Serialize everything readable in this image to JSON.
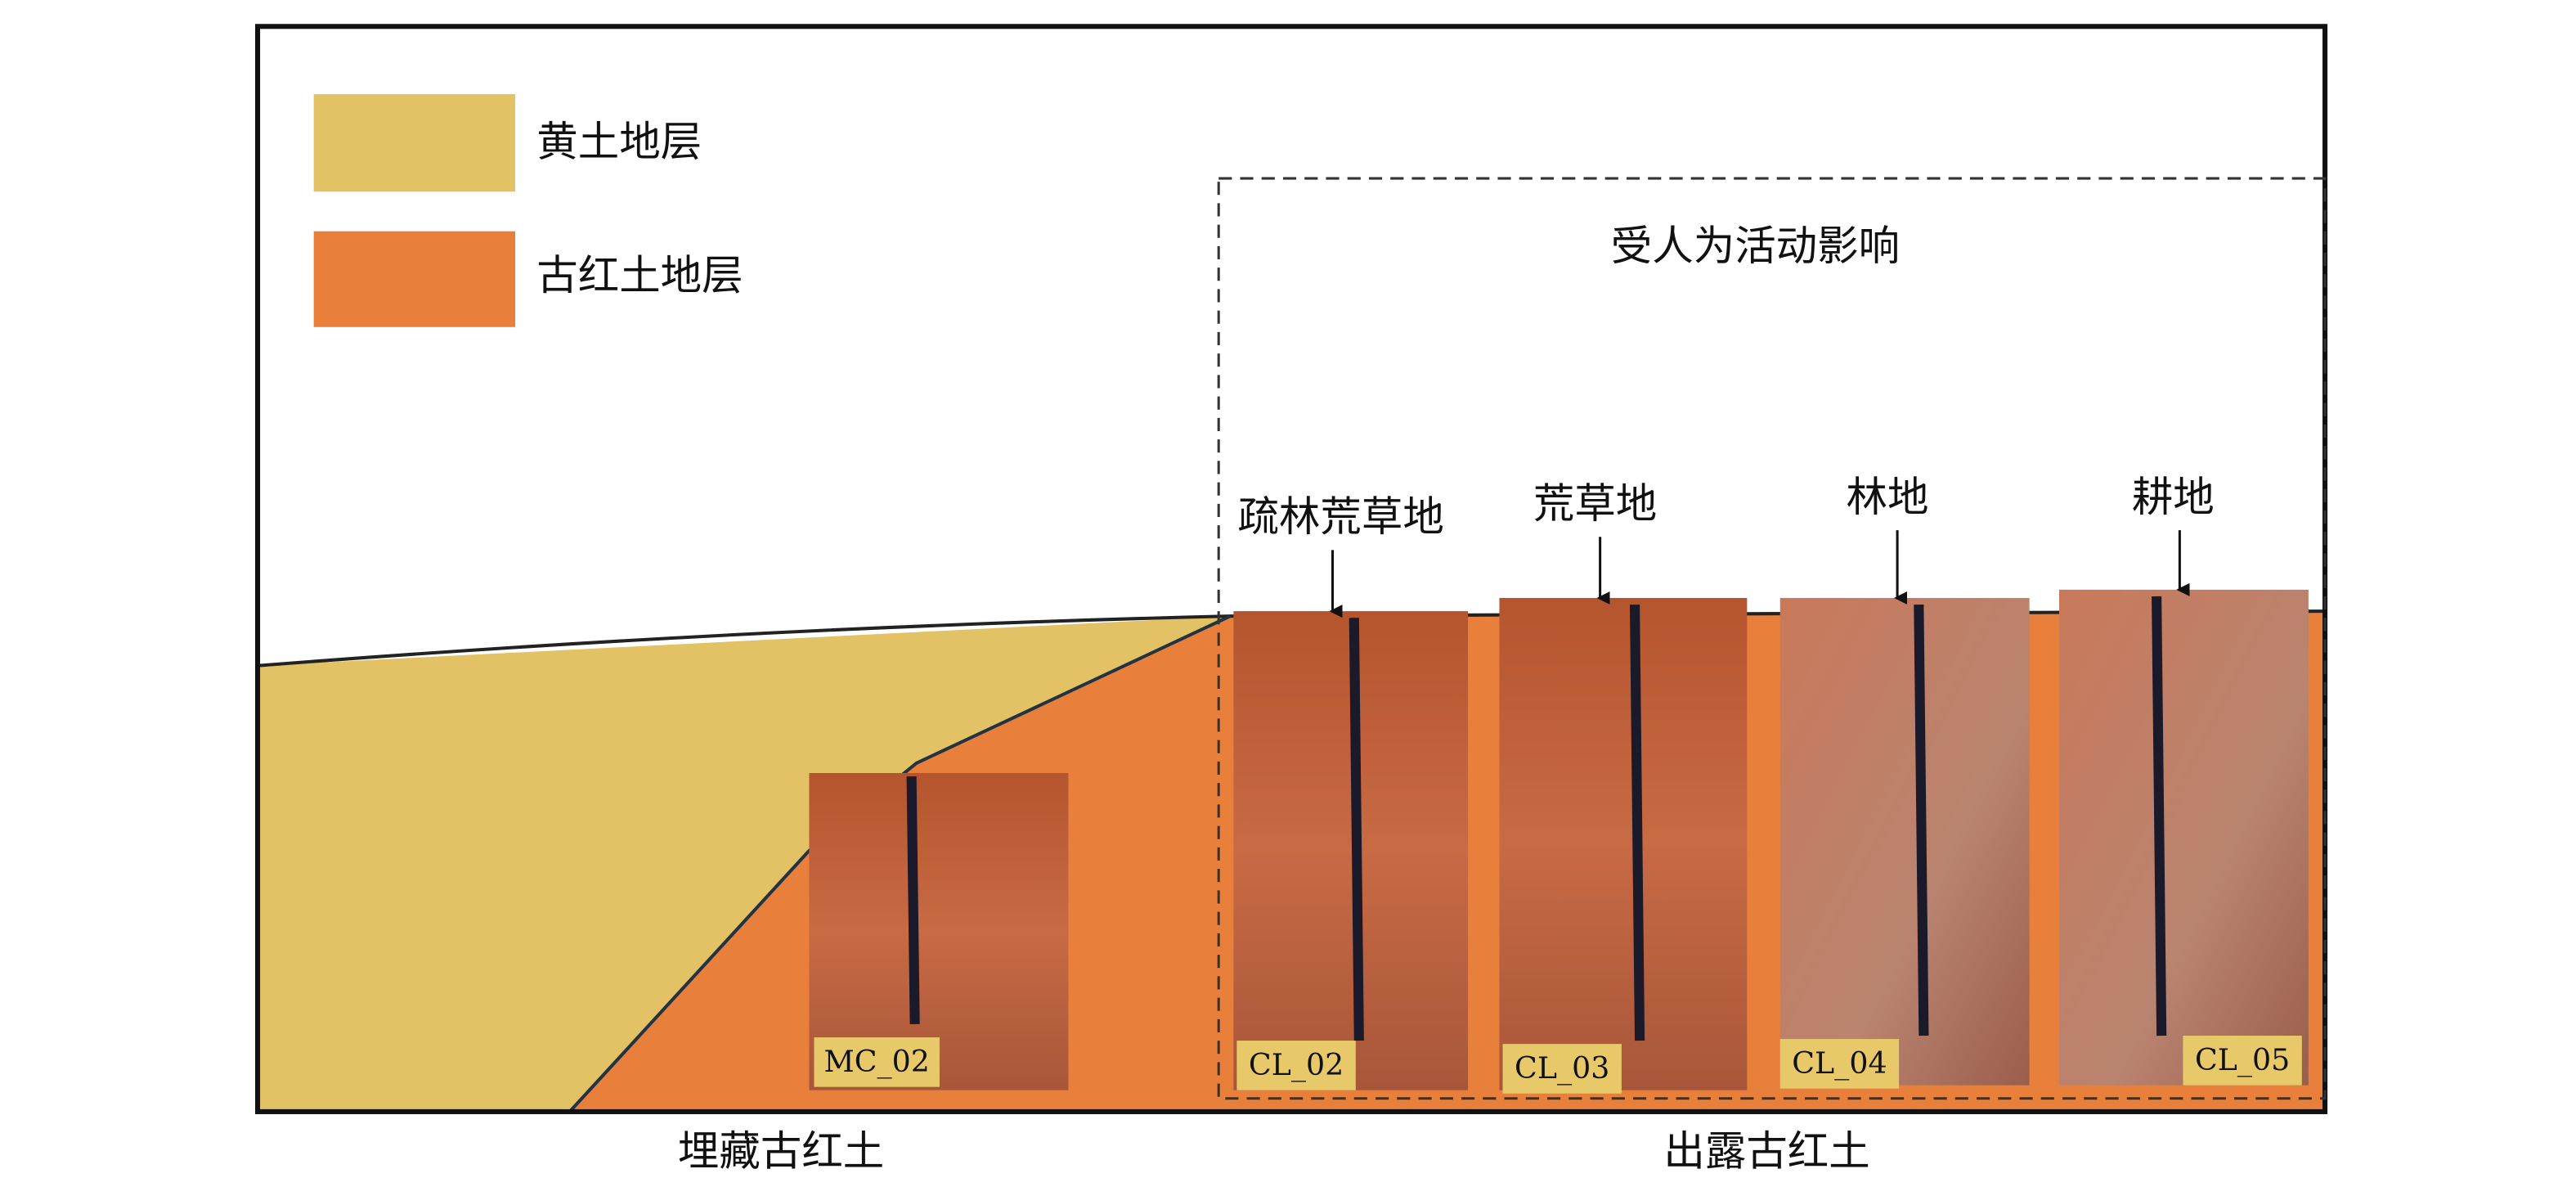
{
  "legend": [
    {
      "label": "黄土地层",
      "color": "#e2c265"
    },
    {
      "label": "古红土地层",
      "color": "#e8803c"
    }
  ],
  "annotation": "受人为活动影响",
  "buried_photo": {
    "label": "MC_02"
  },
  "sites": [
    {
      "name": "疏林荒草地",
      "photo_label": "CL_02"
    },
    {
      "name": "荒草地",
      "photo_label": "CL_03"
    },
    {
      "name": "林地",
      "photo_label": "CL_04"
    },
    {
      "name": "耕地",
      "photo_label": "CL_05"
    }
  ],
  "bottom_labels": [
    "埋藏古红土",
    "出露古红土"
  ]
}
